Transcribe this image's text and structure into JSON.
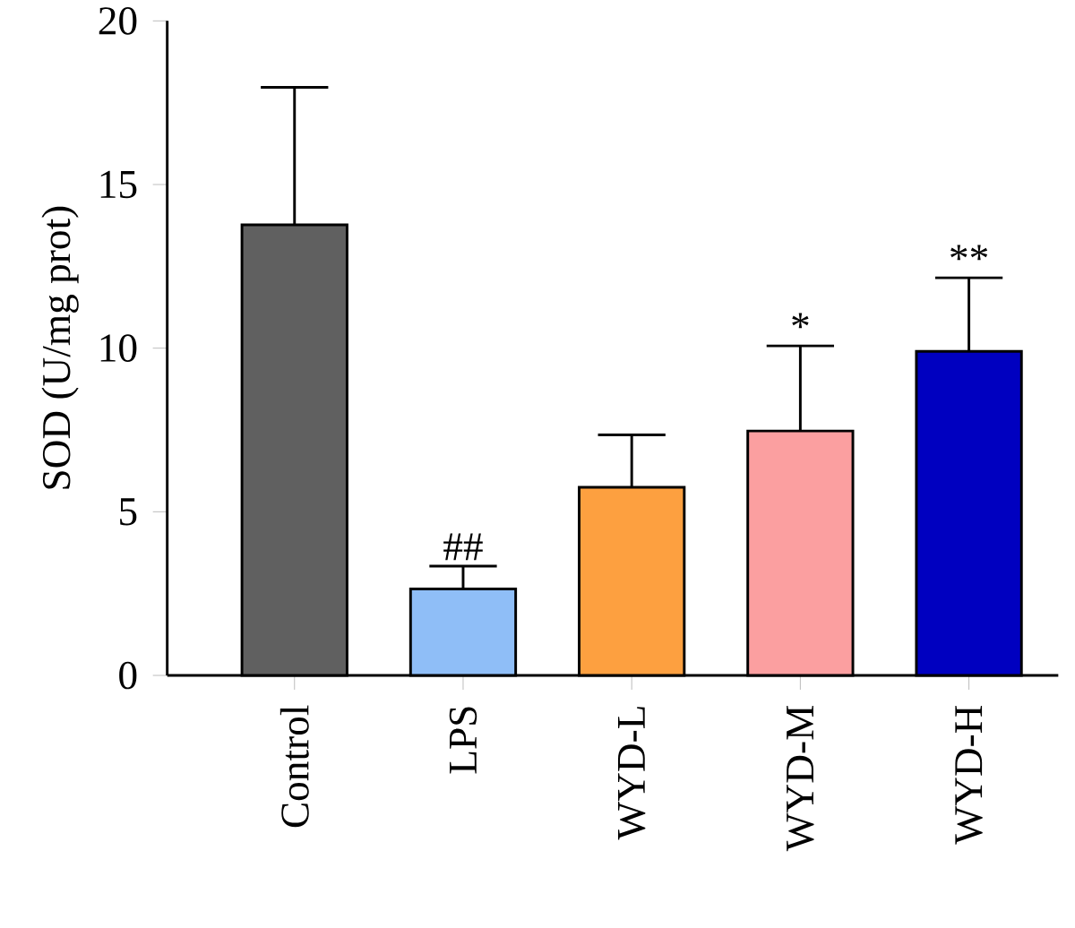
{
  "chart_data": {
    "type": "bar",
    "ylabel": "SOD (U/mg prot)",
    "categories": [
      "Control",
      "LPS",
      "WYD-L",
      "WYD-M",
      "WYD-H"
    ],
    "values": [
      13.77,
      2.64,
      5.75,
      7.47,
      9.9
    ],
    "colors": [
      "#606060",
      "#8fbef7",
      "#fda040",
      "#fb9fa0",
      "#0000c0"
    ],
    "errors": [
      [
        13.77,
        17.97
      ],
      [
        2.64,
        3.34
      ],
      [
        5.75,
        7.35
      ],
      [
        7.47,
        10.07
      ],
      [
        9.9,
        12.15
      ]
    ],
    "ylim": [
      0,
      20
    ],
    "yticks": [
      0,
      5,
      10,
      15,
      20
    ],
    "grid": false,
    "annotations": [
      "##",
      "*",
      "**"
    ]
  }
}
